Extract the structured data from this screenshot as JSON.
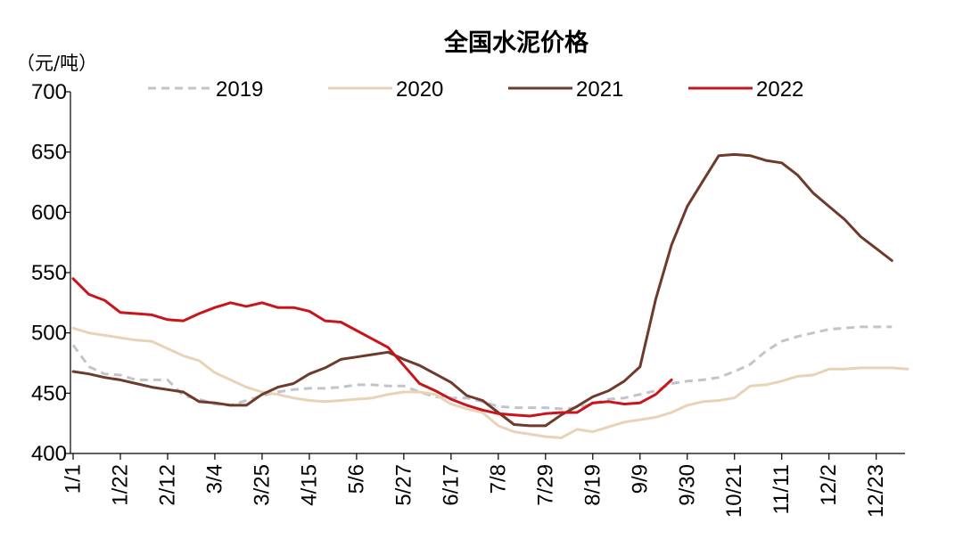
{
  "chart_data": {
    "type": "line",
    "title": "全国水泥价格",
    "ylabel": "（元/吨）",
    "ylim": [
      400,
      700
    ],
    "yticks": [
      400,
      450,
      500,
      550,
      600,
      650,
      700
    ],
    "xtick_labels": [
      "1/1",
      "1/22",
      "2/12",
      "3/4",
      "3/25",
      "4/15",
      "5/6",
      "5/27",
      "6/17",
      "7/8",
      "7/29",
      "8/19",
      "9/9",
      "9/30",
      "10/21",
      "11/11",
      "12/2",
      "12/23"
    ],
    "legend_position": "top",
    "grid": false,
    "series": [
      {
        "name": "2019",
        "color": "#c3c3cd",
        "dash": "dashed",
        "values": [
          490,
          472,
          466,
          465,
          461,
          461,
          461,
          448,
          445,
          441,
          440,
          444,
          448,
          451,
          453,
          454,
          454,
          455,
          457,
          457,
          456,
          456,
          451,
          447,
          446,
          446,
          443,
          439,
          438,
          438,
          438,
          437,
          438,
          441,
          445,
          446,
          449,
          452,
          458,
          460,
          461,
          463,
          468,
          474,
          485,
          493,
          497,
          500,
          503,
          504,
          505,
          505,
          505
        ]
      },
      {
        "name": "2020",
        "color": "#e8d3b7",
        "dash": "solid",
        "values": [
          504,
          500,
          498,
          496,
          494,
          493,
          487,
          481,
          477,
          467,
          461,
          455,
          451,
          449,
          446,
          444,
          443,
          444,
          445,
          446,
          449,
          451,
          451,
          449,
          441,
          437,
          434,
          423,
          418,
          416,
          414,
          413,
          420,
          418,
          422,
          426,
          428,
          430,
          434,
          440,
          443,
          444,
          446,
          456,
          457,
          460,
          464,
          465,
          470,
          470,
          471,
          471,
          471,
          470
        ]
      },
      {
        "name": "2021",
        "color": "#6e3b2b",
        "dash": "solid",
        "values": [
          468,
          466,
          463,
          461,
          458,
          455,
          453,
          451,
          443,
          442,
          440,
          440,
          449,
          455,
          458,
          466,
          471,
          478,
          480,
          482,
          484,
          478,
          473,
          466,
          459,
          448,
          444,
          434,
          424,
          423,
          423,
          432,
          439,
          447,
          452,
          460,
          472,
          528,
          573,
          605,
          626,
          647,
          648,
          647,
          643,
          641,
          631,
          616,
          605,
          594,
          580,
          570,
          560
        ]
      },
      {
        "name": "2022",
        "color": "#c8151b",
        "dash": "solid",
        "values": [
          545,
          532,
          527,
          517,
          516,
          515,
          511,
          510,
          516,
          521,
          525,
          522,
          525,
          521,
          521,
          518,
          510,
          509,
          502,
          495,
          488,
          473,
          458,
          452,
          445,
          440,
          436,
          433,
          432,
          431,
          433,
          434,
          434,
          442,
          443,
          441,
          442,
          449,
          461
        ]
      }
    ]
  }
}
